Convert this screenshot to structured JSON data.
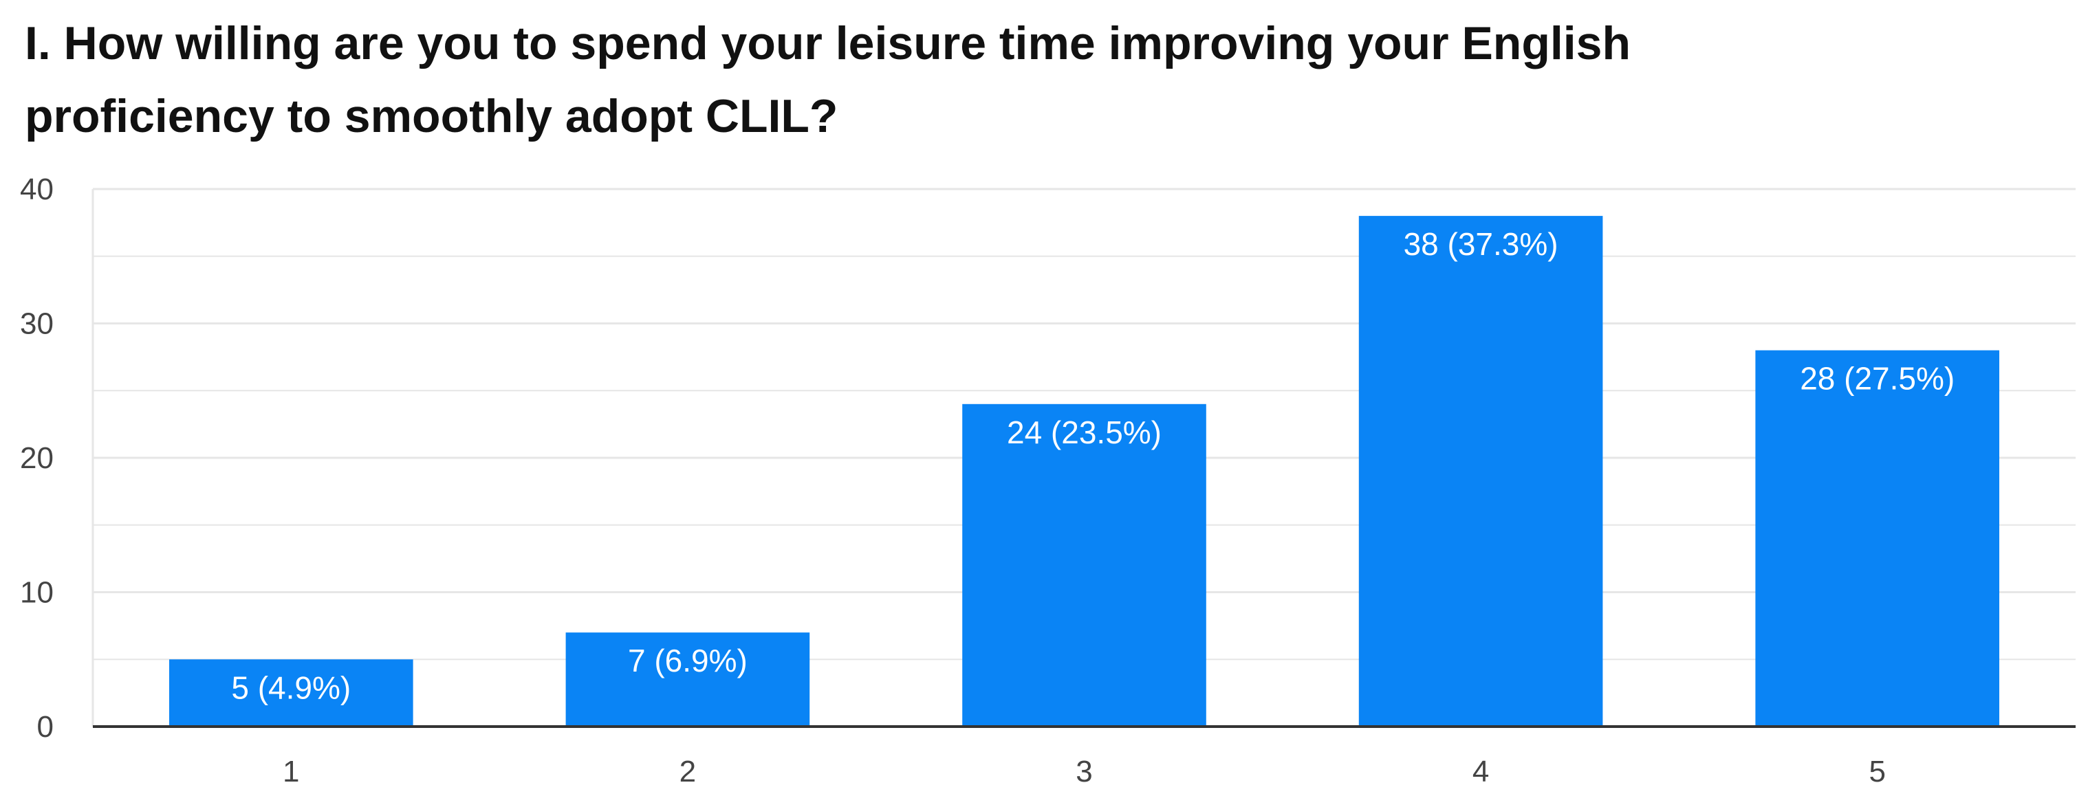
{
  "chart_data": {
    "type": "bar",
    "title_lines": [
      "I. How willing are you to spend your leisure time improving your English",
      "proficiency to smoothly adopt CLIL?"
    ],
    "categories": [
      "1",
      "2",
      "3",
      "4",
      "5"
    ],
    "values": [
      5,
      7,
      24,
      38,
      28
    ],
    "data_labels": [
      "5 (4.9%)",
      "7 (6.9%)",
      "24 (23.5%)",
      "38 (37.3%)",
      "28 (27.5%)"
    ],
    "ylim": [
      0,
      40
    ],
    "yticks": [
      0,
      10,
      20,
      30,
      40
    ],
    "grid": true,
    "legend": "none",
    "bar_color": "#0a84f5",
    "grid_color": "#e6e6e6",
    "axis_color": "#333333"
  }
}
